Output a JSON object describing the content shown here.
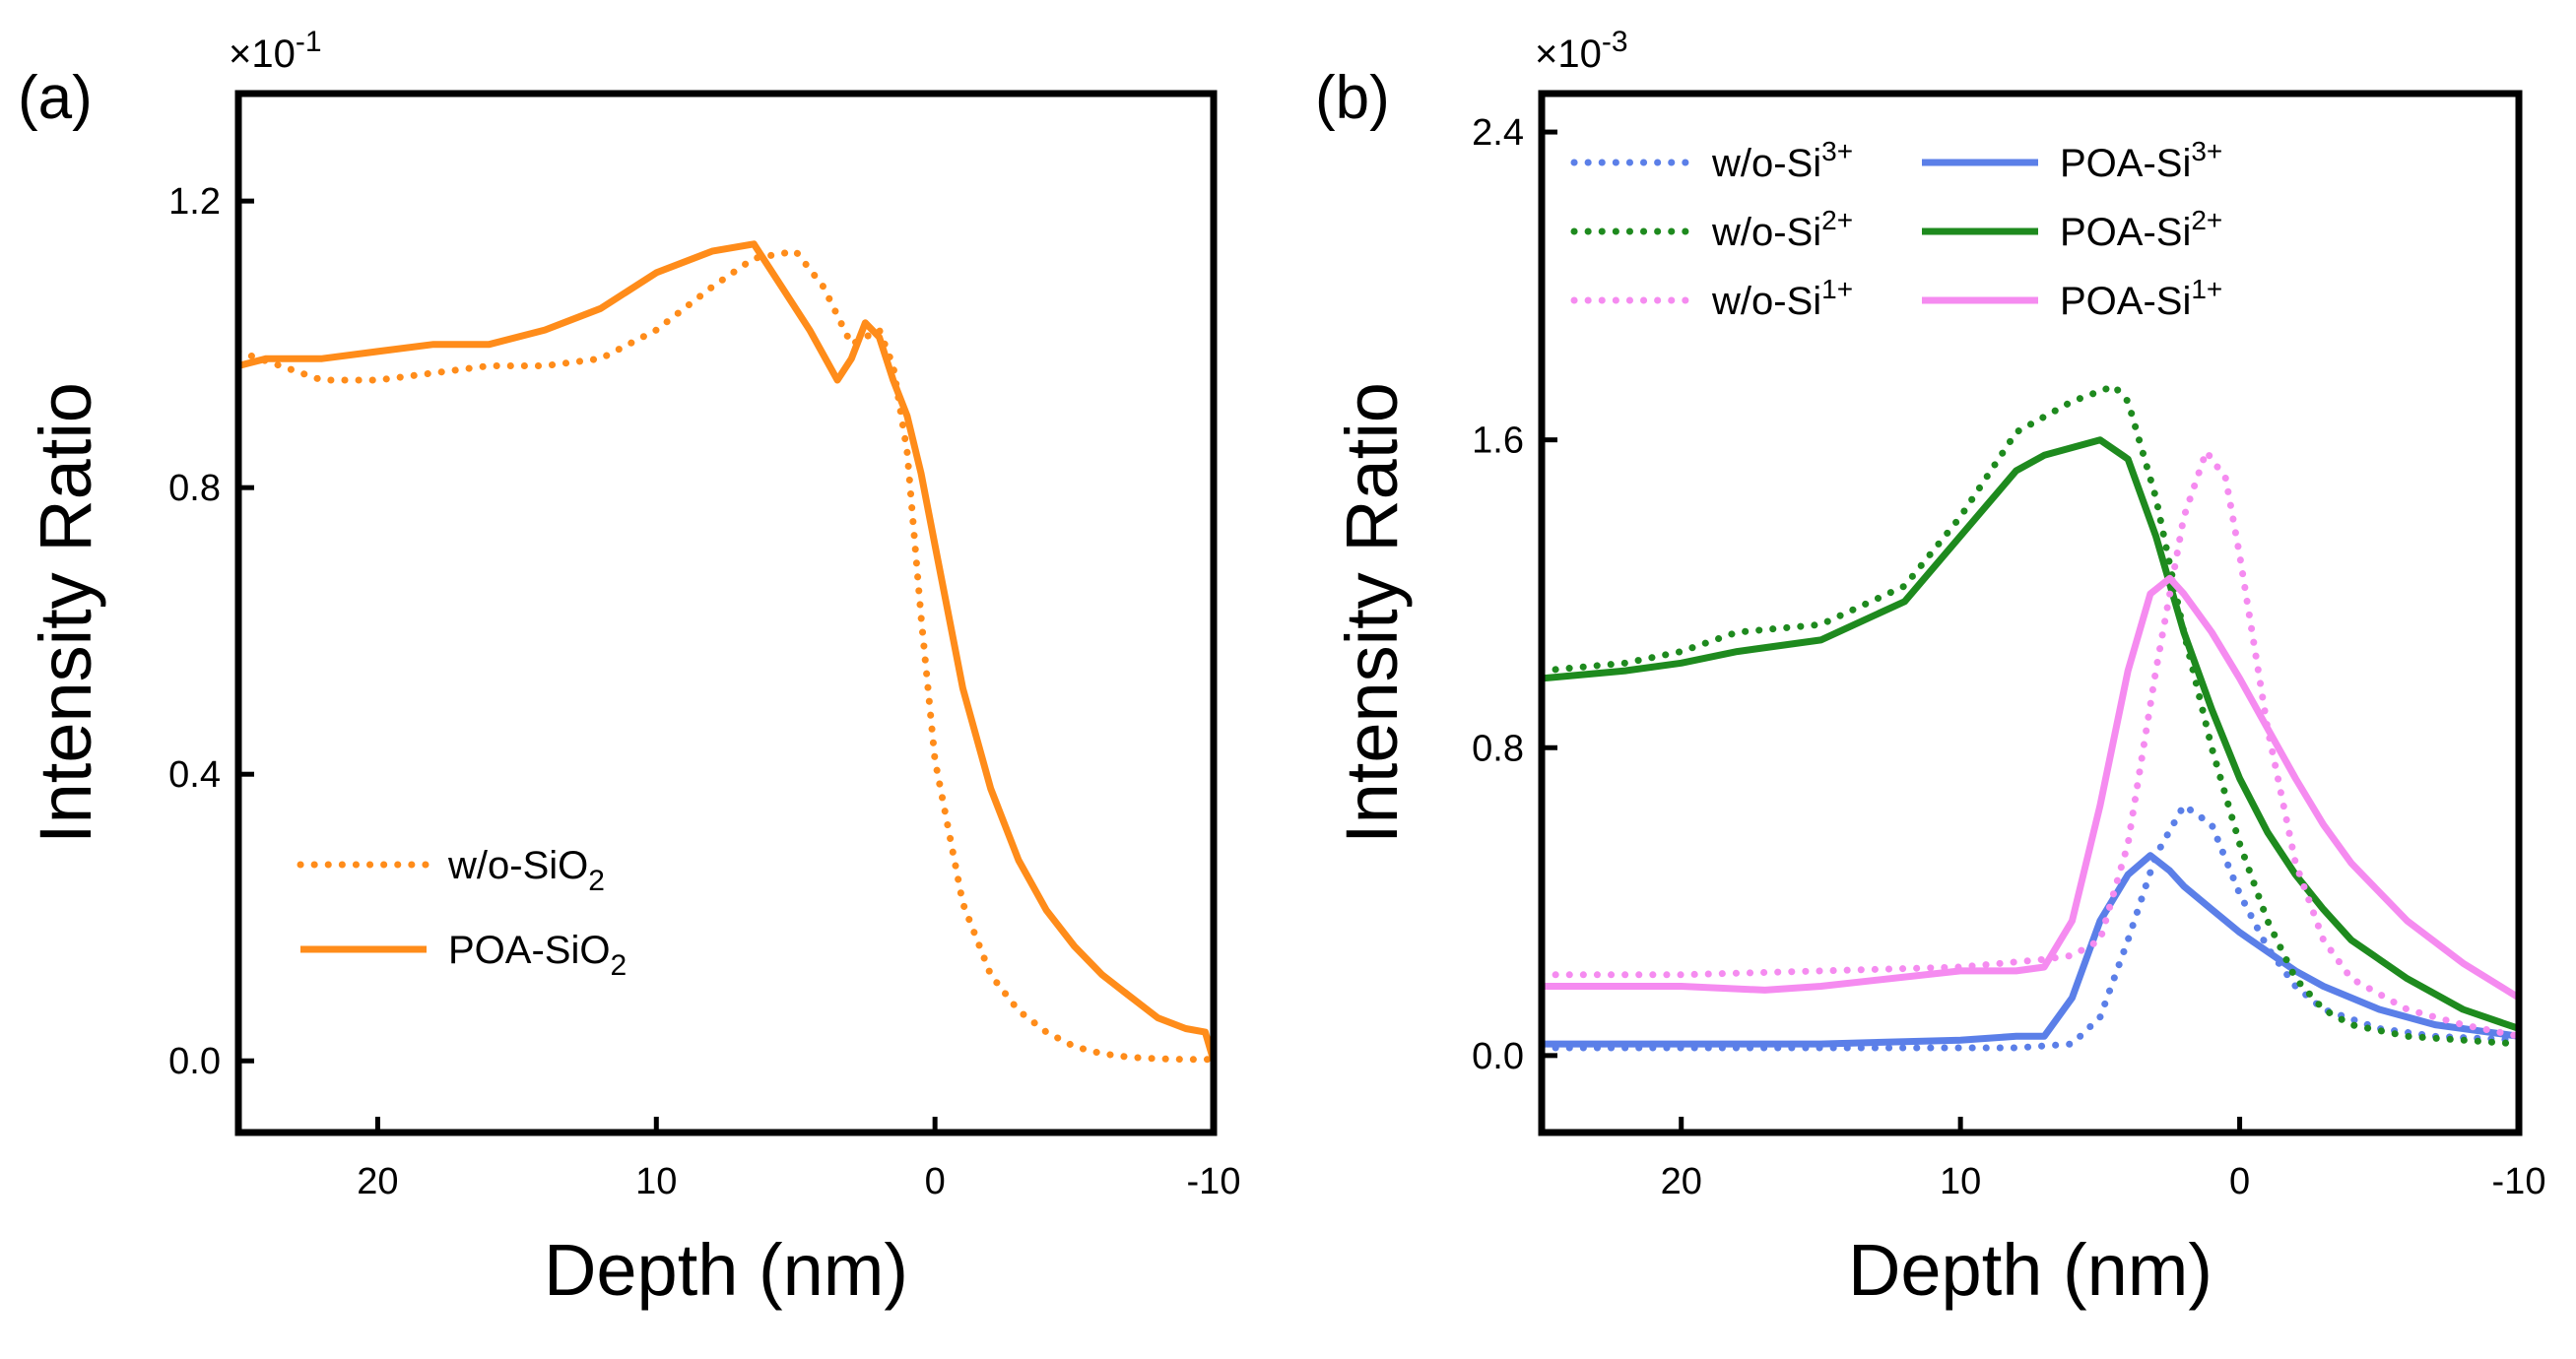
{
  "chart_data": [
    {
      "type": "line",
      "panel_label": "(a)",
      "scale_factor": {
        "base": "×10",
        "exponent": "-1"
      },
      "xlabel": "Depth (nm)",
      "ylabel": "Intensity Ratio",
      "xlim": [
        25,
        -10
      ],
      "ylim": [
        -0.1,
        1.35
      ],
      "xticks": [
        20,
        10,
        0,
        -10
      ],
      "xtick_labels": [
        "20",
        "10",
        "0",
        "-10"
      ],
      "yticks": [
        0.0,
        0.4,
        0.8,
        1.2
      ],
      "ytick_labels": [
        "0.0",
        "0.4",
        "0.8",
        "1.2"
      ],
      "legend_position": "bottom-left",
      "series": [
        {
          "name": "w/o-SiO2",
          "label_main": "w/o-SiO",
          "label_sub": "2",
          "color": "#FF8C1A",
          "style": "dotted",
          "x": [
            25,
            22,
            20,
            18,
            16,
            14,
            12,
            10,
            8,
            6.5,
            5,
            4,
            3,
            2,
            1.5,
            1,
            0.5,
            0,
            -1,
            -2,
            -3,
            -4,
            -5,
            -6,
            -7,
            -8,
            -9,
            -10
          ],
          "y": [
            0.99,
            0.95,
            0.95,
            0.96,
            0.97,
            0.97,
            0.98,
            1.02,
            1.08,
            1.12,
            1.13,
            1.08,
            1.0,
            1.02,
            0.97,
            0.85,
            0.62,
            0.42,
            0.22,
            0.12,
            0.07,
            0.04,
            0.02,
            0.01,
            0.005,
            0.003,
            0.002,
            0.002
          ]
        },
        {
          "name": "POA-SiO2",
          "label_main": "POA-SiO",
          "label_sub": "2",
          "color": "#FF8C1A",
          "style": "solid",
          "x": [
            25,
            24,
            22,
            20,
            18,
            16,
            14,
            12,
            10,
            8,
            6.5,
            5.5,
            4.5,
            3.5,
            3,
            2.5,
            2,
            1.5,
            1,
            0.5,
            0,
            -1,
            -2,
            -3,
            -4,
            -5,
            -6,
            -7,
            -8,
            -9,
            -9.7,
            -10
          ],
          "y": [
            0.97,
            0.98,
            0.98,
            0.99,
            1.0,
            1.0,
            1.02,
            1.05,
            1.1,
            1.13,
            1.14,
            1.08,
            1.02,
            0.95,
            0.98,
            1.03,
            1.01,
            0.95,
            0.9,
            0.82,
            0.72,
            0.52,
            0.38,
            0.28,
            0.21,
            0.16,
            0.12,
            0.09,
            0.06,
            0.045,
            0.04,
            0.0
          ]
        }
      ]
    },
    {
      "type": "line",
      "panel_label": "(b)",
      "scale_factor": {
        "base": "×10",
        "exponent": "-3"
      },
      "xlabel": "Depth (nm)",
      "ylabel": "Intensity Ratio",
      "xlim": [
        25,
        -10
      ],
      "ylim": [
        -0.2,
        2.5
      ],
      "xticks": [
        20,
        10,
        0,
        -10
      ],
      "xtick_labels": [
        "20",
        "10",
        "0",
        "-10"
      ],
      "yticks": [
        0.0,
        0.8,
        1.6,
        2.4
      ],
      "ytick_labels": [
        "0.0",
        "0.8",
        "1.6",
        "2.4"
      ],
      "legend_position": "top-left",
      "series": [
        {
          "name": "w/o-Si3+",
          "label_main": "w/o-Si",
          "label_sup": "3+",
          "color": "#5B7FE8",
          "style": "dotted",
          "x": [
            25,
            20,
            15,
            10,
            8,
            6,
            5,
            4,
            3,
            2,
            1,
            0,
            -1,
            -2,
            -3,
            -5,
            -7,
            -10
          ],
          "y": [
            0.02,
            0.02,
            0.02,
            0.02,
            0.02,
            0.03,
            0.1,
            0.3,
            0.52,
            0.65,
            0.6,
            0.42,
            0.28,
            0.18,
            0.12,
            0.07,
            0.05,
            0.04
          ]
        },
        {
          "name": "POA-Si3+",
          "label_main": "POA-Si",
          "label_sup": "3+",
          "color": "#5B7FE8",
          "style": "solid",
          "x": [
            25,
            20,
            15,
            10,
            8,
            7,
            6,
            5,
            4,
            3.2,
            2.5,
            2,
            1,
            0,
            -1,
            -2,
            -3,
            -5,
            -7,
            -10
          ],
          "y": [
            0.03,
            0.03,
            0.03,
            0.04,
            0.05,
            0.05,
            0.15,
            0.35,
            0.47,
            0.52,
            0.48,
            0.44,
            0.38,
            0.32,
            0.27,
            0.22,
            0.18,
            0.12,
            0.08,
            0.05
          ]
        },
        {
          "name": "w/o-Si2+",
          "label_main": "w/o-Si",
          "label_sup": "2+",
          "color": "#1E8A1E",
          "style": "dotted",
          "x": [
            25,
            22,
            20,
            18,
            15,
            12,
            10,
            8,
            6,
            4.5,
            4,
            3,
            2,
            1,
            0,
            -1,
            -2,
            -3,
            -4,
            -6,
            -8,
            -10
          ],
          "y": [
            1.0,
            1.02,
            1.05,
            1.1,
            1.12,
            1.22,
            1.4,
            1.62,
            1.7,
            1.74,
            1.7,
            1.45,
            1.1,
            0.8,
            0.55,
            0.35,
            0.2,
            0.12,
            0.08,
            0.05,
            0.04,
            0.03
          ]
        },
        {
          "name": "POA-Si2+",
          "label_main": "POA-Si",
          "label_sup": "2+",
          "color": "#1E8A1E",
          "style": "solid",
          "x": [
            25,
            22,
            20,
            18,
            15,
            12,
            10,
            8,
            7,
            5,
            4,
            3,
            2,
            1,
            0,
            -1,
            -2,
            -3,
            -4,
            -6,
            -8,
            -10
          ],
          "y": [
            0.98,
            1.0,
            1.02,
            1.05,
            1.08,
            1.18,
            1.35,
            1.52,
            1.56,
            1.6,
            1.55,
            1.35,
            1.1,
            0.9,
            0.72,
            0.58,
            0.47,
            0.38,
            0.3,
            0.2,
            0.12,
            0.07
          ]
        },
        {
          "name": "w/o-Si1+",
          "label_main": "w/o-Si",
          "label_sup": "1+",
          "color": "#F58BF0",
          "style": "dotted",
          "x": [
            25,
            20,
            15,
            10,
            7,
            6,
            5,
            4,
            3,
            2,
            1.2,
            0.5,
            0,
            -1,
            -2,
            -3,
            -4,
            -6,
            -8,
            -10
          ],
          "y": [
            0.21,
            0.21,
            0.22,
            0.23,
            0.25,
            0.26,
            0.3,
            0.55,
            1.0,
            1.4,
            1.57,
            1.5,
            1.3,
            0.85,
            0.5,
            0.3,
            0.2,
            0.12,
            0.08,
            0.05
          ]
        },
        {
          "name": "POA-Si1+",
          "label_main": "POA-Si",
          "label_sup": "1+",
          "color": "#F58BF0",
          "style": "solid",
          "x": [
            25,
            20,
            17,
            15,
            10,
            8,
            7,
            6,
            5,
            4,
            3.2,
            2.5,
            2,
            1,
            0,
            -1,
            -2,
            -3,
            -4,
            -6,
            -8,
            -10
          ],
          "y": [
            0.18,
            0.18,
            0.17,
            0.18,
            0.22,
            0.22,
            0.23,
            0.35,
            0.65,
            1.0,
            1.2,
            1.24,
            1.2,
            1.1,
            0.98,
            0.85,
            0.72,
            0.6,
            0.5,
            0.35,
            0.24,
            0.15
          ]
        }
      ]
    }
  ]
}
